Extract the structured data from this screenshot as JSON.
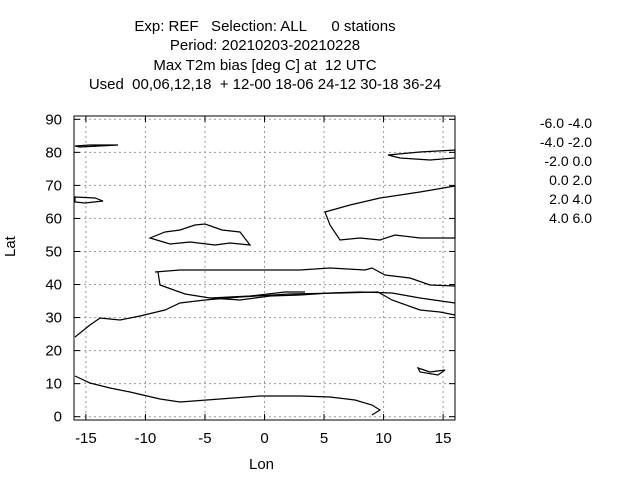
{
  "titles": [
    "Exp: REF   Selection: ALL      0 stations",
    "Period: 20210203-20210228",
    "Max T2m bias [deg C] at  12 UTC",
    "Used  00,06,12,18  + 12-00 18-06 24-12 30-18 36-24"
  ],
  "chart_data": {
    "type": "scatter",
    "xlabel": "Lon",
    "ylabel": "Lat",
    "xlim": [
      -16,
      16
    ],
    "ylim": [
      -1,
      91
    ],
    "xticks": [
      -15,
      -10,
      -5,
      0,
      5,
      10,
      15
    ],
    "yticks": [
      0,
      10,
      20,
      30,
      40,
      50,
      60,
      70,
      80,
      90
    ],
    "grid": true,
    "legend_position": "right",
    "series": [
      {
        "name": "-6.0 -4.0",
        "color": "#000000",
        "points": []
      },
      {
        "name": "-4.0 -2.0",
        "color": "#000000",
        "points": []
      },
      {
        "name": "-2.0 0.0",
        "color": "#f0d040",
        "points": []
      },
      {
        "name": "0.0 2.0",
        "color": "#e02020",
        "points": []
      },
      {
        "name": "2.0 4.0",
        "color": "#8a2be2",
        "points": []
      },
      {
        "name": "4.0 6.0",
        "color": "#f0d040",
        "points": []
      }
    ]
  }
}
